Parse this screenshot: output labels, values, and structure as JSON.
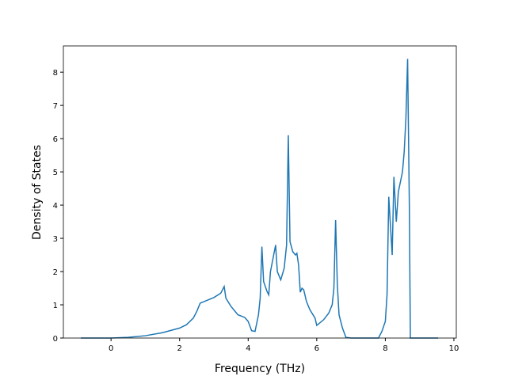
{
  "chart_data": {
    "type": "line",
    "x_label": "Frequency (THz)",
    "y_label": "Density of States",
    "xlim": [
      -1.39,
      10.07
    ],
    "ylim": [
      0,
      8.79
    ],
    "xticks": [
      0,
      2,
      4,
      6,
      8,
      10
    ],
    "yticks": [
      0,
      1,
      2,
      3,
      4,
      5,
      6,
      7,
      8
    ],
    "x": [
      -0.88,
      0,
      0.5,
      1,
      1.5,
      2,
      2.2,
      2.4,
      2.5,
      2.6,
      3.0,
      3.2,
      3.3,
      3.35,
      3.5,
      3.7,
      3.9,
      4.0,
      4.1,
      4.2,
      4.3,
      4.35,
      4.4,
      4.45,
      4.55,
      4.6,
      4.65,
      4.8,
      4.85,
      4.95,
      5.05,
      5.12,
      5.17,
      5.22,
      5.3,
      5.38,
      5.42,
      5.47,
      5.52,
      5.57,
      5.62,
      5.7,
      5.8,
      5.95,
      6.0,
      6.2,
      6.35,
      6.45,
      6.5,
      6.55,
      6.6,
      6.65,
      6.75,
      6.85,
      7.0,
      7.8,
      7.9,
      8.0,
      8.05,
      8.1,
      8.2,
      8.25,
      8.32,
      8.38,
      8.5,
      8.55,
      8.6,
      8.65,
      8.7,
      8.73,
      9.54
    ],
    "series": [
      {
        "color": "#1f77b4",
        "values": [
          0,
          0,
          0.02,
          0.07,
          0.16,
          0.3,
          0.4,
          0.6,
          0.8,
          1.05,
          1.22,
          1.35,
          1.55,
          1.2,
          0.95,
          0.7,
          0.62,
          0.5,
          0.22,
          0.2,
          0.7,
          1.2,
          2.75,
          1.7,
          1.4,
          1.3,
          2.0,
          2.8,
          2.0,
          1.75,
          2.1,
          2.8,
          6.1,
          2.9,
          2.6,
          2.5,
          2.55,
          2.2,
          1.38,
          1.5,
          1.45,
          1.1,
          0.85,
          0.6,
          0.38,
          0.55,
          0.75,
          1.0,
          1.5,
          3.55,
          1.6,
          0.7,
          0.3,
          0.02,
          0,
          0,
          0.2,
          0.5,
          1.3,
          4.25,
          2.5,
          4.85,
          3.5,
          4.4,
          5.0,
          5.6,
          6.6,
          8.4,
          4.0,
          0,
          0
        ]
      }
    ]
  }
}
